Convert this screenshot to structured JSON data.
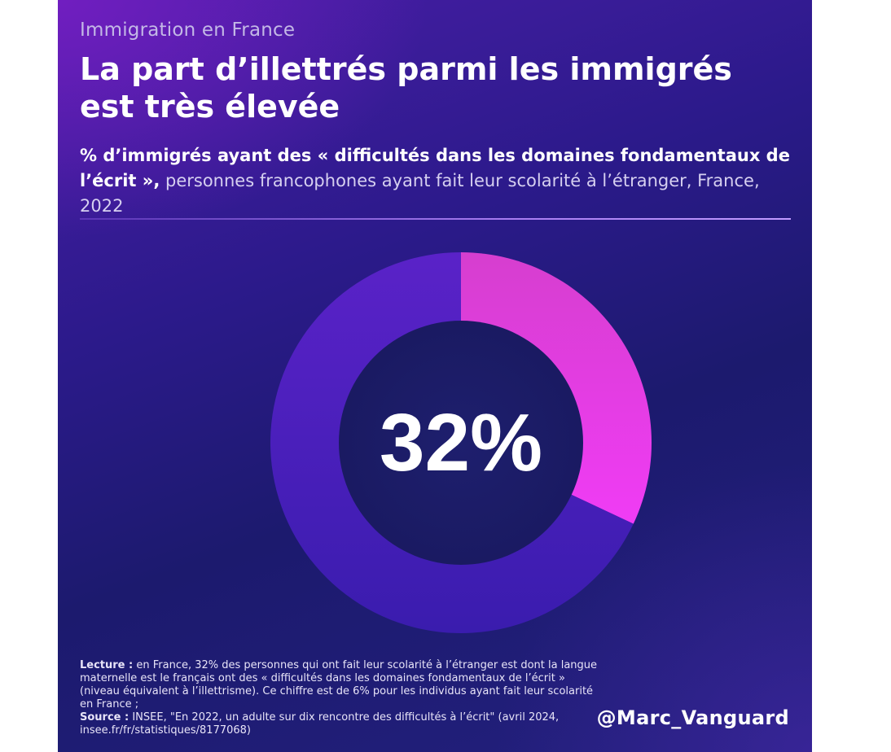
{
  "header": {
    "kicker": "Immigration en France",
    "title": "La part d’illettrés parmi les immigrés est très élevée",
    "subtitle_bold": "% d’immigrés ayant des « difficultés dans les domaines fondamentaux de l’écrit »,",
    "subtitle_rest": " personnes francophones ayant fait leur scolarité à l’étranger, France, 2022"
  },
  "chart_data": {
    "type": "pie",
    "style": "donut",
    "center_label": "32%",
    "slices": [
      {
        "value": 32,
        "color": "#e030ee"
      },
      {
        "value": 68,
        "color": "#4a20c2"
      }
    ]
  },
  "footer": {
    "lecture_label": "Lecture :",
    "lecture_text": " en France, 32% des personnes qui ont fait leur scolarité à l’étranger est dont la langue maternelle est le français ont des « difficultés dans les domaines fondamentaux de l’écrit » (niveau équivalent à l’illettrisme). Ce chiffre est de 6%  pour les individus ayant fait leur scolarité en France ;",
    "source_label": "Source :",
    "source_text": " INSEE, \"En 2022, un adulte sur dix rencontre des difficultés à l’écrit\" (avril 2024, insee.fr/fr/statistiques/8177068)",
    "handle": "@Marc_Vanguard"
  },
  "colors": {
    "accent": "#e030ee",
    "background_dark": "#1c1a6e",
    "ring": "#4a20c2",
    "hole": "#1c1c6c"
  }
}
